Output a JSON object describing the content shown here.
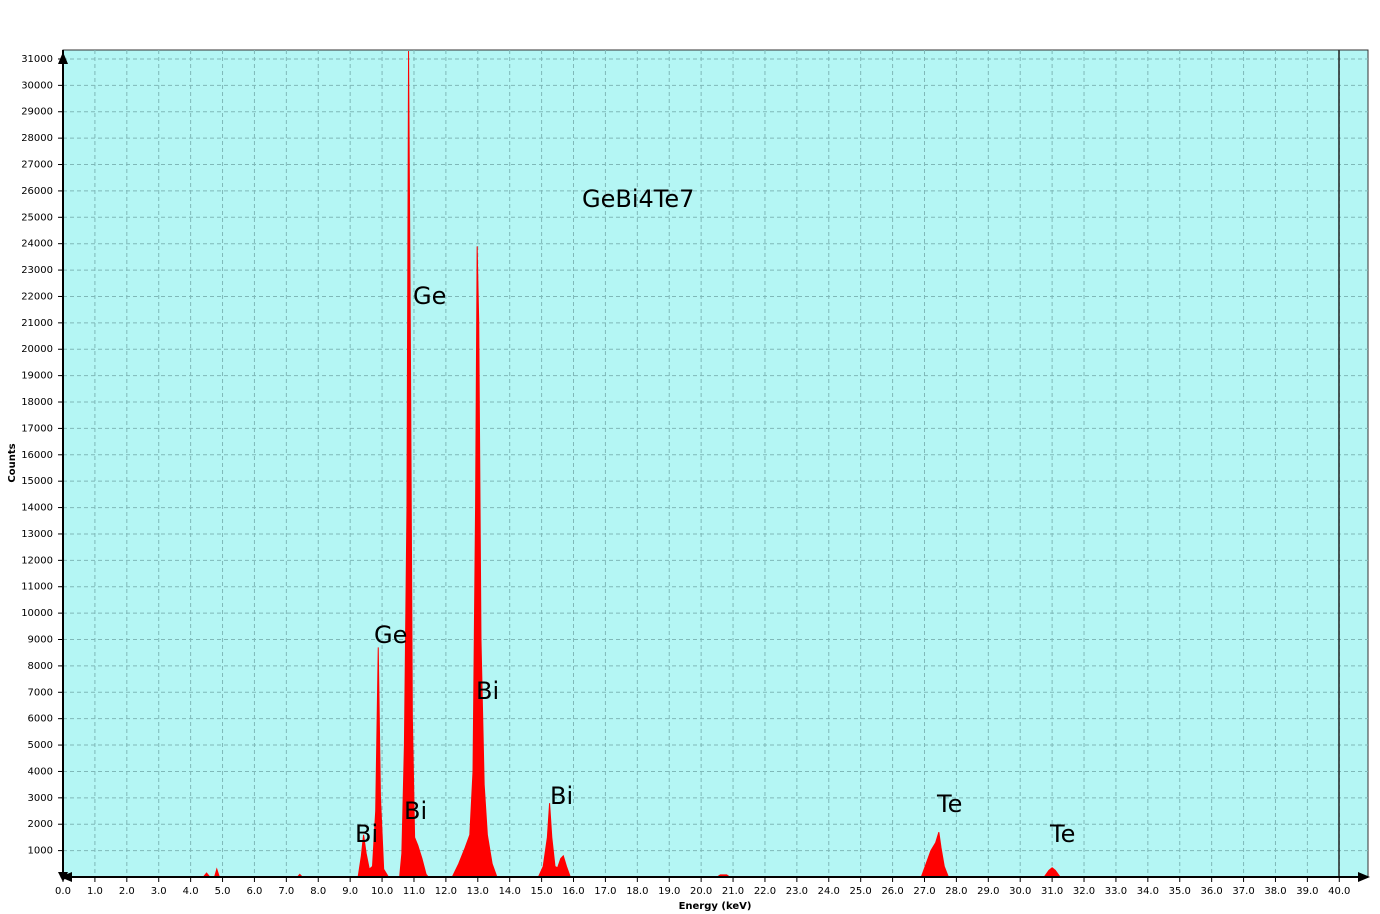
{
  "chart_data": {
    "type": "area",
    "title": "GeBi4Te7",
    "x_label": "Energy (keV)",
    "y_label": "Counts",
    "color": "#ff0000",
    "background": "#b4f6f4",
    "grid": true,
    "annotations": [
      "Ge",
      "Ge",
      "Bi",
      "Bi",
      "Bi",
      "Bi",
      "Te",
      "Te"
    ],
    "xlim": [
      0,
      40.9
    ],
    "ylim": [
      0,
      31340
    ],
    "xticks": [
      {
        "value": 0,
        "label": "0.0"
      },
      {
        "value": 1,
        "label": "1.0"
      },
      {
        "value": 2,
        "label": "2.0"
      },
      {
        "value": 3,
        "label": "3.0"
      },
      {
        "value": 4,
        "label": "4.0"
      },
      {
        "value": 5,
        "label": "5.0"
      },
      {
        "value": 6,
        "label": "6.0"
      },
      {
        "value": 7,
        "label": "7.0"
      },
      {
        "value": 8,
        "label": "8.0"
      },
      {
        "value": 9,
        "label": "9.0"
      },
      {
        "value": 10,
        "label": "10.0"
      },
      {
        "value": 11,
        "label": "11.0"
      },
      {
        "value": 12,
        "label": "12.0"
      },
      {
        "value": 13,
        "label": "13.0"
      },
      {
        "value": 14,
        "label": "14.0"
      },
      {
        "value": 15,
        "label": "15.0"
      },
      {
        "value": 16,
        "label": "16.0"
      },
      {
        "value": 17,
        "label": "17.0"
      },
      {
        "value": 18,
        "label": "18.0"
      },
      {
        "value": 19,
        "label": "19.0"
      },
      {
        "value": 20,
        "label": "20.0"
      },
      {
        "value": 21,
        "label": "21.0"
      },
      {
        "value": 22,
        "label": "22.0"
      },
      {
        "value": 23,
        "label": "23.0"
      },
      {
        "value": 24,
        "label": "24.0"
      },
      {
        "value": 25,
        "label": "25.0"
      },
      {
        "value": 26,
        "label": "26.0"
      },
      {
        "value": 27,
        "label": "27.0"
      },
      {
        "value": 28,
        "label": "28.0"
      },
      {
        "value": 29,
        "label": "29.0"
      },
      {
        "value": 30,
        "label": "30.0"
      },
      {
        "value": 31,
        "label": "31.0"
      },
      {
        "value": 32,
        "label": "32.0"
      },
      {
        "value": 33,
        "label": "33.0"
      },
      {
        "value": 34,
        "label": "34.0"
      },
      {
        "value": 35,
        "label": "35.0"
      },
      {
        "value": 36,
        "label": "36.0"
      },
      {
        "value": 37,
        "label": "37.0"
      },
      {
        "value": 38,
        "label": "38.0"
      },
      {
        "value": 39,
        "label": "39.0"
      },
      {
        "value": 40,
        "label": "40.0"
      }
    ],
    "yticks": [
      1000,
      2000,
      3000,
      4000,
      5000,
      6000,
      7000,
      8000,
      9000,
      10000,
      11000,
      12000,
      13000,
      14000,
      15000,
      16000,
      17000,
      18000,
      19000,
      20000,
      21000,
      22000,
      23000,
      24000,
      25000,
      26000,
      27000,
      28000,
      29000,
      30000,
      31000
    ],
    "x": [
      0,
      4.4,
      4.5,
      4.6,
      4.75,
      4.82,
      4.9,
      7.35,
      7.42,
      7.5,
      9.25,
      9.35,
      9.42,
      9.5,
      9.6,
      9.7,
      9.8,
      9.88,
      9.95,
      10.05,
      10.2,
      10.55,
      10.62,
      10.7,
      10.78,
      10.83,
      10.88,
      10.95,
      11.02,
      11.12,
      11.25,
      11.38,
      11.45,
      12.2,
      12.4,
      12.6,
      12.75,
      12.85,
      12.93,
      12.98,
      13.03,
      13.1,
      13.2,
      13.3,
      13.45,
      13.6,
      14.9,
      15.05,
      15.18,
      15.25,
      15.32,
      15.42,
      15.5,
      15.6,
      15.68,
      15.78,
      15.9,
      20.5,
      20.6,
      20.8,
      20.9,
      26.9,
      27.05,
      27.2,
      27.35,
      27.45,
      27.52,
      27.62,
      27.75,
      30.75,
      30.9,
      31.0,
      31.1,
      31.25,
      40.9
    ],
    "values": [
      0,
      0,
      150,
      0,
      0,
      300,
      0,
      0,
      100,
      0,
      0,
      800,
      1600,
      900,
      300,
      400,
      2500,
      8700,
      3000,
      300,
      0,
      0,
      900,
      5000,
      14000,
      31300,
      22000,
      6000,
      1500,
      1200,
      700,
      100,
      0,
      0,
      500,
      1100,
      1600,
      4000,
      14000,
      23900,
      21000,
      9000,
      3500,
      1600,
      500,
      0,
      0,
      400,
      1500,
      2800,
      1500,
      400,
      350,
      700,
      800,
      400,
      0,
      0,
      80,
      80,
      0,
      0,
      500,
      1000,
      1300,
      1700,
      1100,
      400,
      0,
      0,
      250,
      350,
      250,
      0,
      0
    ]
  }
}
